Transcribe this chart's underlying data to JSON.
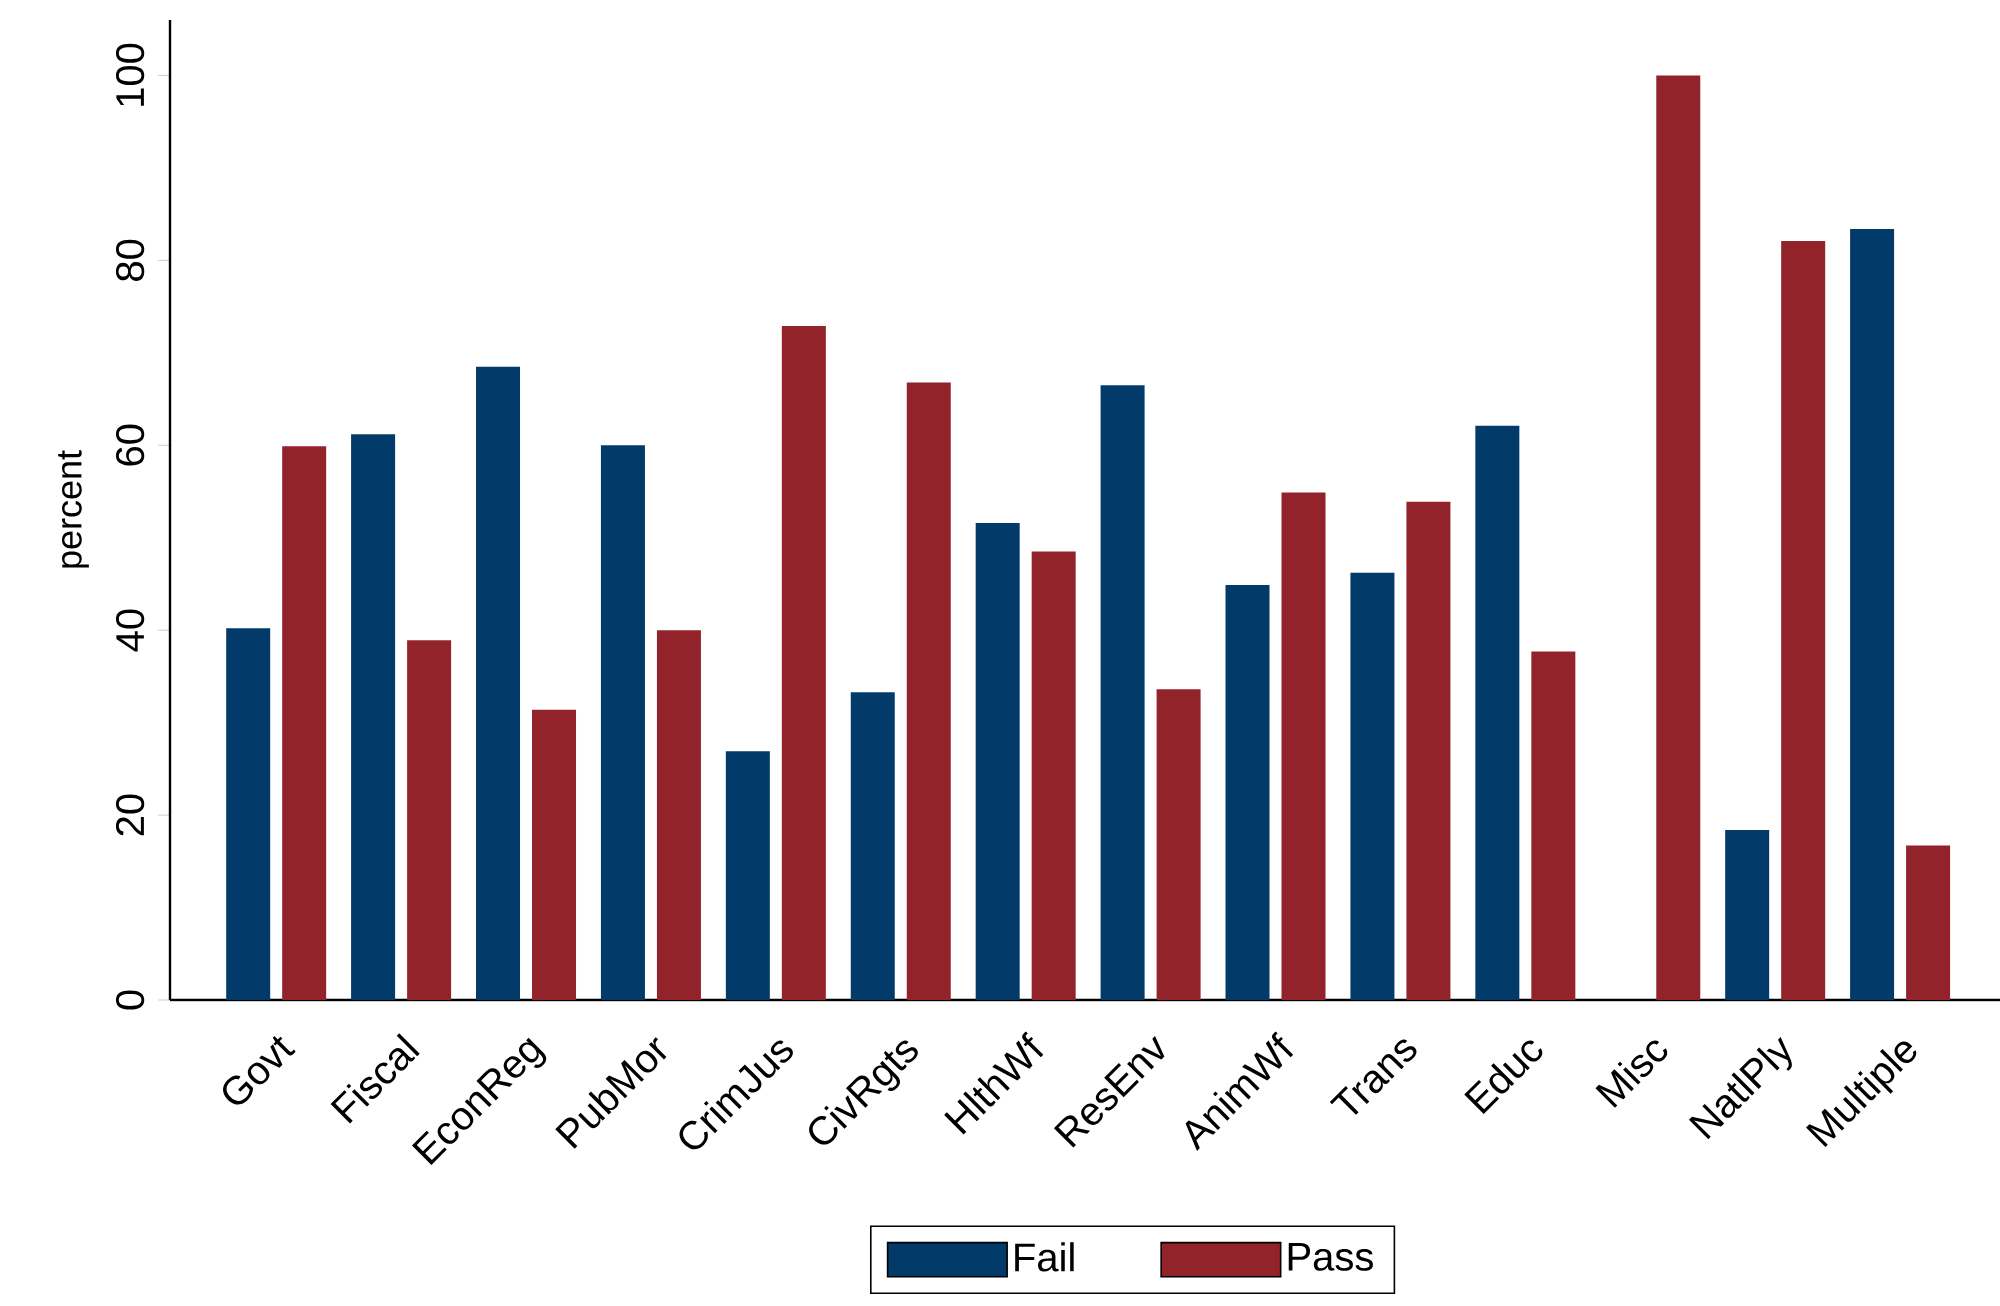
{
  "chart_data": {
    "type": "bar",
    "ylabel": "percent",
    "categories": [
      "Govt",
      "Fiscal",
      "EconReg",
      "PubMor",
      "CrimJus",
      "CivRgts",
      "HlthWf",
      "ResEnv",
      "AnimWf",
      "Trans",
      "Educ",
      "Misc",
      "NatlPly",
      "Multiple"
    ],
    "series": [
      {
        "name": "Fail",
        "color": "#023a6a",
        "values": [
          40.2,
          61.2,
          68.5,
          60,
          26.9,
          33.3,
          51.6,
          66.5,
          44.9,
          46.2,
          62.1,
          0,
          18.4,
          83.4
        ]
      },
      {
        "name": "Pass",
        "color": "#93232b",
        "values": [
          59.9,
          38.9,
          31.4,
          40,
          72.9,
          66.8,
          48.5,
          33.6,
          54.9,
          53.9,
          37.7,
          100,
          82.1,
          16.7
        ]
      }
    ],
    "ylim": [
      0,
      106
    ],
    "yticks": [
      0,
      20,
      40,
      60,
      80,
      100
    ],
    "legend": "bottom"
  }
}
